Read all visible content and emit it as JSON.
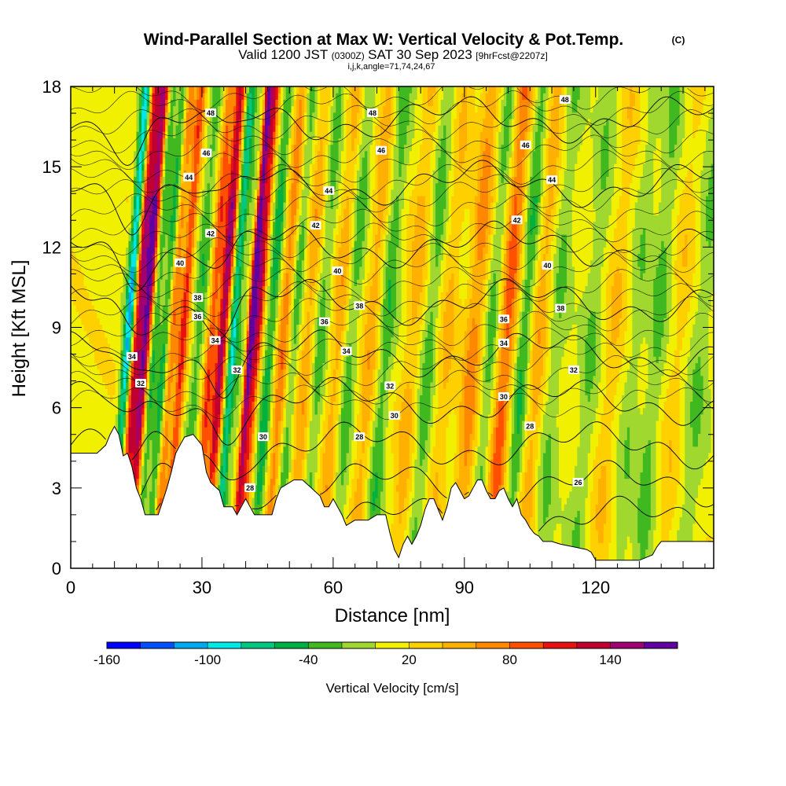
{
  "chart_data": {
    "type": "heatmap",
    "title": "Wind-Parallel Section at Max W: Vertical Velocity & Pot.Temp.",
    "title_mark": "(C)",
    "subtitle_main_a": "Valid 1200 JST",
    "subtitle_small_a": "(0300Z)",
    "subtitle_main_b": "SAT 30 Sep 2023",
    "subtitle_small_b": "[9hrFcst@2207z]",
    "subtitle2": "i,j,k,angle=71,74,24,67",
    "xlabel": "Distance [nm]",
    "ylabel": "Height [Kft MSL]",
    "xlim": [
      0,
      147
    ],
    "ylim": [
      0,
      18
    ],
    "x_ticks": [
      "0",
      "30",
      "60",
      "90",
      "120"
    ],
    "x_tick_values": [
      0,
      30,
      60,
      90,
      120
    ],
    "y_ticks": [
      "0",
      "3",
      "6",
      "9",
      "12",
      "15",
      "18"
    ],
    "y_tick_values": [
      0,
      3,
      6,
      9,
      12,
      15,
      18
    ],
    "colorbar": {
      "title": "Vertical Velocity [cm/s]",
      "labels": [
        "-160",
        "-100",
        "-40",
        "20",
        "80",
        "140"
      ],
      "label_values": [
        -160,
        -100,
        -40,
        20,
        80,
        140
      ],
      "range": [
        -160,
        180
      ],
      "step": 20,
      "colors": [
        "#0000ff",
        "#0050ff",
        "#00a8f0",
        "#00e8e8",
        "#00c880",
        "#00b040",
        "#40b820",
        "#a0d830",
        "#f0f000",
        "#ffd000",
        "#ffb000",
        "#ff8800",
        "#ff5000",
        "#e81010",
        "#c00030",
        "#a00070",
        "#6000a0"
      ]
    },
    "terrain_kft": [
      [
        0,
        4.3
      ],
      [
        6,
        4.3
      ],
      [
        8,
        4.6
      ],
      [
        9,
        5.0
      ],
      [
        10,
        5.3
      ],
      [
        11,
        5.0
      ],
      [
        12,
        4.2
      ],
      [
        13,
        4.3
      ],
      [
        14,
        3.8
      ],
      [
        15,
        3.0
      ],
      [
        16,
        2.6
      ],
      [
        17,
        2.0
      ],
      [
        20,
        2.0
      ],
      [
        21,
        2.5
      ],
      [
        22,
        3.0
      ],
      [
        23,
        3.6
      ],
      [
        24,
        4.3
      ],
      [
        25,
        4.6
      ],
      [
        26,
        4.9
      ],
      [
        28,
        5.0
      ],
      [
        30,
        4.6
      ],
      [
        31,
        3.6
      ],
      [
        32,
        3.2
      ],
      [
        34,
        2.9
      ],
      [
        35,
        2.3
      ],
      [
        37,
        2.3
      ],
      [
        38,
        2.0
      ],
      [
        39,
        2.3
      ],
      [
        40,
        2.6
      ],
      [
        41,
        2.3
      ],
      [
        42,
        2.0
      ],
      [
        46,
        2.0
      ],
      [
        47,
        2.6
      ],
      [
        48,
        3.0
      ],
      [
        51,
        3.3
      ],
      [
        53,
        3.3
      ],
      [
        55,
        3.0
      ],
      [
        57,
        2.7
      ],
      [
        58,
        2.3
      ],
      [
        59,
        2.3
      ],
      [
        60,
        2.6
      ],
      [
        61,
        2.3
      ],
      [
        62,
        2.0
      ],
      [
        63,
        1.6
      ],
      [
        64,
        1.7
      ],
      [
        65,
        1.8
      ],
      [
        68,
        1.8
      ],
      [
        70,
        2.0
      ],
      [
        72,
        2.0
      ],
      [
        73,
        1.3
      ],
      [
        74,
        0.7
      ],
      [
        75,
        0.4
      ],
      [
        76,
        0.9
      ],
      [
        77,
        1.2
      ],
      [
        78,
        0.9
      ],
      [
        79,
        1.2
      ],
      [
        80,
        1.6
      ],
      [
        81,
        2.2
      ],
      [
        82,
        2.6
      ],
      [
        83,
        2.6
      ],
      [
        84,
        2.2
      ],
      [
        85,
        1.8
      ],
      [
        86,
        2.3
      ],
      [
        87,
        3.0
      ],
      [
        88,
        3.2
      ],
      [
        89,
        2.9
      ],
      [
        90,
        2.6
      ],
      [
        91,
        2.7
      ],
      [
        92,
        3.0
      ],
      [
        93,
        3.3
      ],
      [
        94,
        3.3
      ],
      [
        95,
        2.9
      ],
      [
        96,
        2.6
      ],
      [
        97,
        2.6
      ],
      [
        98,
        2.9
      ],
      [
        99,
        3.0
      ],
      [
        100,
        2.6
      ],
      [
        101,
        2.3
      ],
      [
        102,
        2.6
      ],
      [
        103,
        2.0
      ],
      [
        104,
        1.8
      ],
      [
        105,
        1.5
      ],
      [
        106,
        1.3
      ],
      [
        107,
        1.2
      ],
      [
        108,
        1.0
      ],
      [
        110,
        1.0
      ],
      [
        112,
        0.9
      ],
      [
        115,
        0.8
      ],
      [
        118,
        0.7
      ],
      [
        119,
        0.6
      ],
      [
        120,
        0.3
      ],
      [
        125,
        0.3
      ],
      [
        130,
        0.3
      ],
      [
        133,
        0.5
      ],
      [
        134,
        0.8
      ],
      [
        135,
        1.0
      ],
      [
        143,
        1.0
      ],
      [
        147,
        1.0
      ]
    ],
    "theta_levels_c": [
      26,
      28,
      30,
      32,
      34,
      36,
      38,
      40,
      42,
      44,
      46,
      48
    ],
    "theta_labels": [
      {
        "label": "48",
        "x": 32,
        "y": 17.0
      },
      {
        "label": "48",
        "x": 69,
        "y": 17.0
      },
      {
        "label": "48",
        "x": 113,
        "y": 17.5
      },
      {
        "label": "46",
        "x": 31,
        "y": 15.5
      },
      {
        "label": "46",
        "x": 71,
        "y": 15.6
      },
      {
        "label": "46",
        "x": 104,
        "y": 15.8
      },
      {
        "label": "44",
        "x": 27,
        "y": 14.6
      },
      {
        "label": "44",
        "x": 59,
        "y": 14.1
      },
      {
        "label": "44",
        "x": 110,
        "y": 14.5
      },
      {
        "label": "42",
        "x": 32,
        "y": 12.5
      },
      {
        "label": "42",
        "x": 56,
        "y": 12.8
      },
      {
        "label": "42",
        "x": 102,
        "y": 13.0
      },
      {
        "label": "40",
        "x": 25,
        "y": 11.4
      },
      {
        "label": "40",
        "x": 61,
        "y": 11.1
      },
      {
        "label": "40",
        "x": 109,
        "y": 11.3
      },
      {
        "label": "38",
        "x": 29,
        "y": 10.1
      },
      {
        "label": "38",
        "x": 66,
        "y": 9.8
      },
      {
        "label": "38",
        "x": 112,
        "y": 9.7
      },
      {
        "label": "36",
        "x": 29,
        "y": 9.4
      },
      {
        "label": "36",
        "x": 58,
        "y": 9.2
      },
      {
        "label": "36",
        "x": 99,
        "y": 9.3
      },
      {
        "label": "34",
        "x": 14,
        "y": 7.9
      },
      {
        "label": "34",
        "x": 33,
        "y": 8.5
      },
      {
        "label": "34",
        "x": 63,
        "y": 8.1
      },
      {
        "label": "34",
        "x": 99,
        "y": 8.4
      },
      {
        "label": "32",
        "x": 16,
        "y": 6.9
      },
      {
        "label": "32",
        "x": 38,
        "y": 7.4
      },
      {
        "label": "32",
        "x": 73,
        "y": 6.8
      },
      {
        "label": "32",
        "x": 115,
        "y": 7.4
      },
      {
        "label": "30",
        "x": 44,
        "y": 4.9
      },
      {
        "label": "30",
        "x": 74,
        "y": 5.7
      },
      {
        "label": "30",
        "x": 99,
        "y": 6.4
      },
      {
        "label": "28",
        "x": 66,
        "y": 4.9
      },
      {
        "label": "28",
        "x": 105,
        "y": 5.3
      },
      {
        "label": "28",
        "x": 41,
        "y": 3.0
      },
      {
        "label": "26",
        "x": 116,
        "y": 3.2
      }
    ]
  }
}
